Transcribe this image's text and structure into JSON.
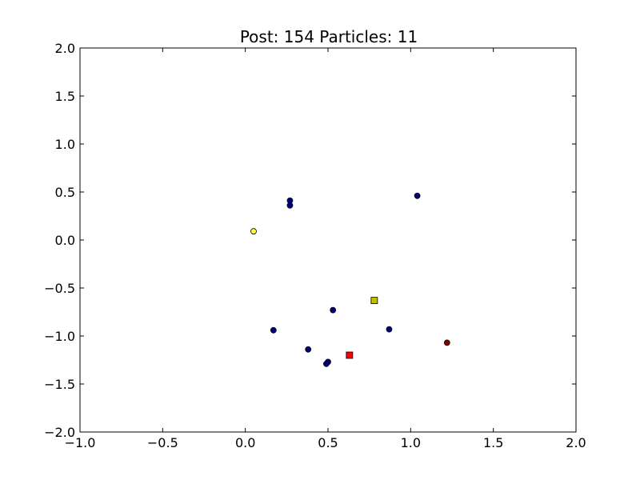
{
  "chart_data": {
    "type": "scatter",
    "title": "Post: 154 Particles: 11",
    "xlabel": "",
    "ylabel": "",
    "xlim": [
      -1.0,
      2.0
    ],
    "ylim": [
      -2.0,
      2.0
    ],
    "grid": false,
    "x_ticks": [
      "−1.0",
      "−0.5",
      "0.0",
      "0.5",
      "1.0",
      "1.5",
      "2.0"
    ],
    "x_tick_values": [
      -1.0,
      -0.5,
      0.0,
      0.5,
      1.0,
      1.5,
      2.0
    ],
    "y_ticks": [
      "2.0",
      "1.5",
      "1.0",
      "0.5",
      "0.0",
      "−0.5",
      "−1.0",
      "−1.5",
      "−2.0"
    ],
    "y_tick_values": [
      2.0,
      1.5,
      1.0,
      0.5,
      0.0,
      -0.5,
      -1.0,
      -1.5,
      -2.0
    ],
    "colors": {
      "particle": "#00007f",
      "highlight_particle": "#ffff33",
      "red_particle": "#7f0000",
      "yellow_square": "#bfbf00",
      "red_square": "#ff0000",
      "marker_edge": "#000000"
    },
    "series": [
      {
        "marker": "circle",
        "color": "#00007f",
        "points": [
          {
            "x": 0.27,
            "y": 0.41
          },
          {
            "x": 0.27,
            "y": 0.36
          },
          {
            "x": 1.04,
            "y": 0.46
          },
          {
            "x": 0.53,
            "y": -0.73
          },
          {
            "x": 0.17,
            "y": -0.94
          },
          {
            "x": 0.38,
            "y": -1.14
          },
          {
            "x": 0.5,
            "y": -1.27
          },
          {
            "x": 0.49,
            "y": -1.29
          },
          {
            "x": 0.87,
            "y": -0.93
          }
        ]
      },
      {
        "marker": "circle",
        "color": "#ffff33",
        "points": [
          {
            "x": 0.05,
            "y": 0.09
          }
        ]
      },
      {
        "marker": "circle",
        "color": "#7f0000",
        "points": [
          {
            "x": 1.22,
            "y": -1.07
          }
        ]
      },
      {
        "marker": "square",
        "color": "#bfbf00",
        "points": [
          {
            "x": 0.78,
            "y": -0.63
          }
        ]
      },
      {
        "marker": "square",
        "color": "#ff0000",
        "points": [
          {
            "x": 0.63,
            "y": -1.2
          }
        ]
      }
    ]
  }
}
